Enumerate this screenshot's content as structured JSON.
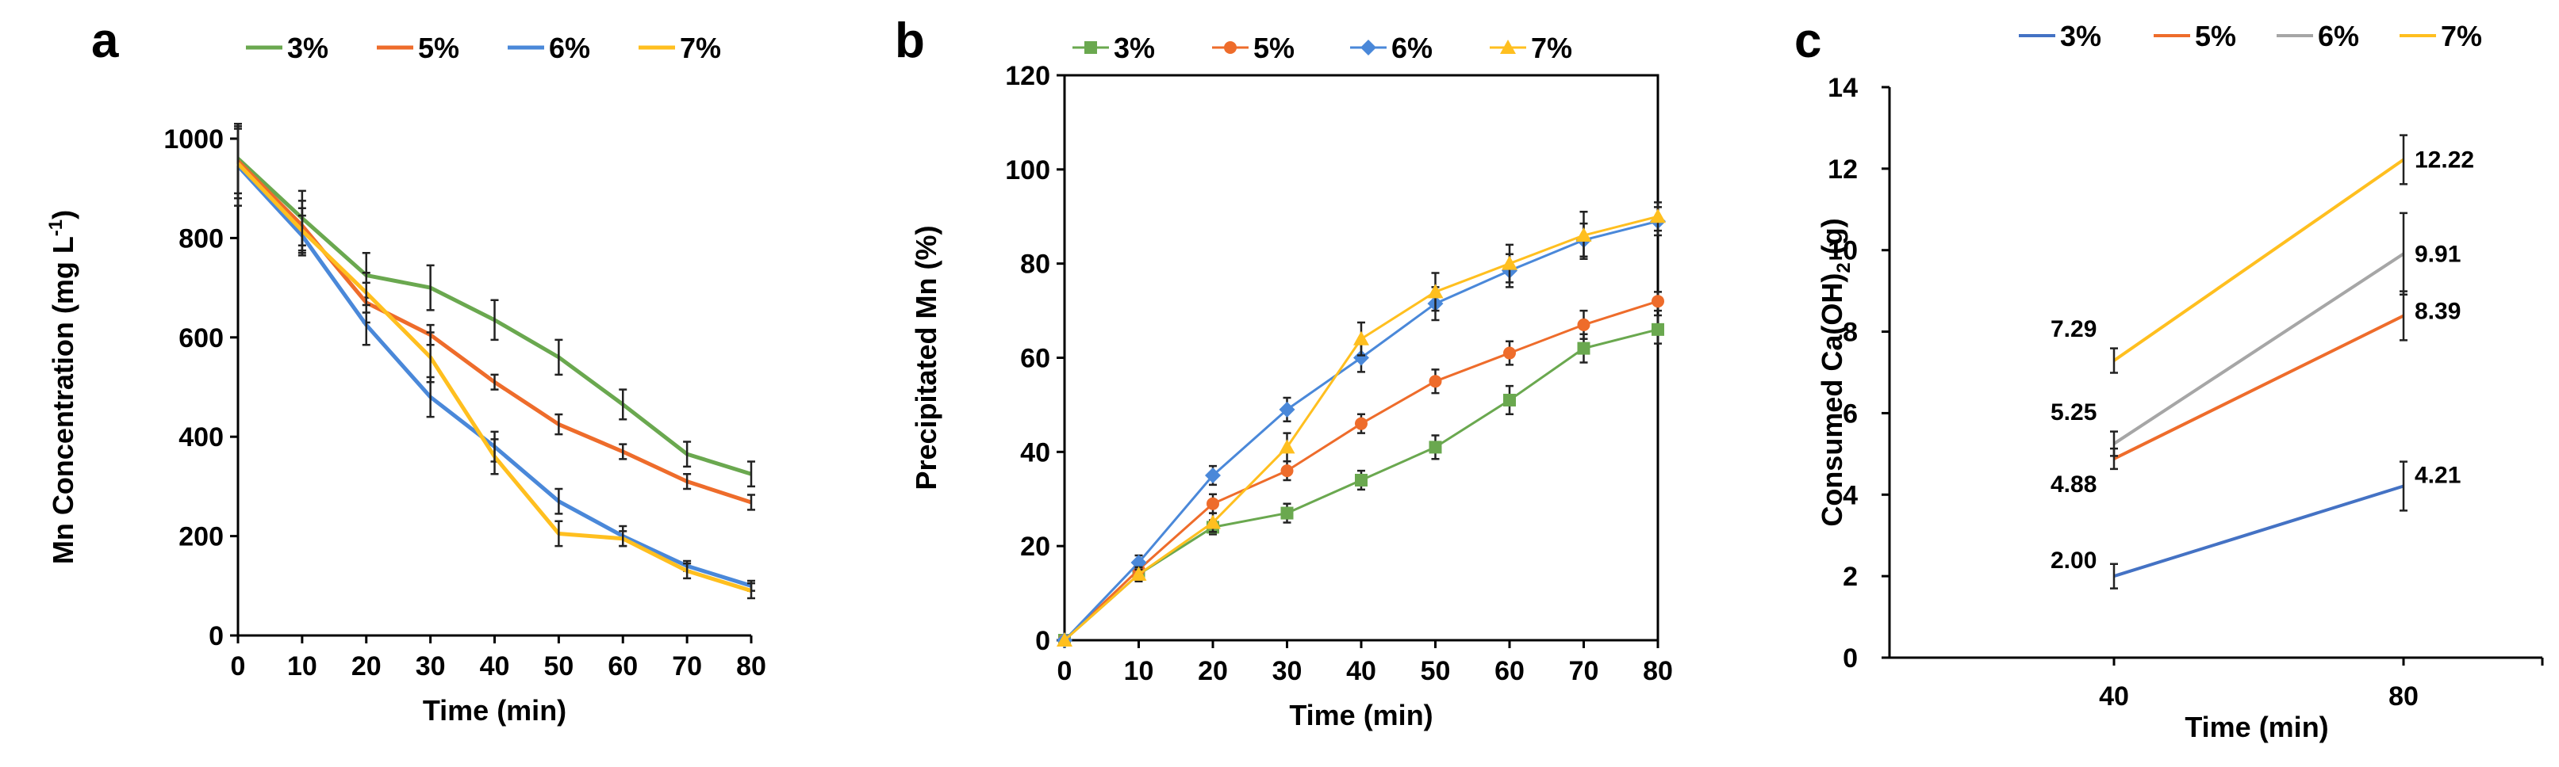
{
  "colors": {
    "c3": "#6aa84f",
    "c5": "#ee6c2b",
    "c6": "#4a88d9",
    "c7": "#ffbf1f",
    "c6_panel_c": "#a6a6a6",
    "c3_panel_c": "#4472c4"
  },
  "chart_data": [
    {
      "panel": "a",
      "type": "line",
      "title": "",
      "xlabel": "Time (min)",
      "ylabel": "Mn Concentration (mg L",
      "ylabel_sup": "-1",
      "ylabel_end": ")",
      "x": [
        0,
        10,
        20,
        30,
        40,
        50,
        60,
        70,
        80
      ],
      "xlim": [
        0,
        80
      ],
      "ylim": [
        0,
        1000
      ],
      "xticks": [
        "0",
        "10",
        "20",
        "30",
        "40",
        "50",
        "60",
        "70",
        "80"
      ],
      "yticks": [
        "0",
        "200",
        "400",
        "600",
        "800",
        "1000"
      ],
      "legend_position": "top",
      "series": [
        {
          "name": "3%",
          "values": [
            960,
            840,
            725,
            700,
            635,
            560,
            465,
            365,
            325
          ],
          "errors": [
            70,
            55,
            45,
            45,
            40,
            35,
            30,
            25,
            25
          ]
        },
        {
          "name": "5%",
          "values": [
            955,
            825,
            670,
            605,
            510,
            425,
            370,
            310,
            268
          ],
          "errors": [
            75,
            50,
            40,
            20,
            15,
            20,
            15,
            15,
            15
          ]
        },
        {
          "name": "6%",
          "values": [
            945,
            805,
            625,
            480,
            380,
            270,
            200,
            140,
            100
          ],
          "errors": [
            80,
            40,
            40,
            40,
            30,
            25,
            20,
            10,
            10
          ]
        },
        {
          "name": "7%",
          "values": [
            950,
            815,
            690,
            560,
            360,
            205,
            195,
            130,
            90
          ],
          "errors": [
            70,
            45,
            40,
            50,
            35,
            25,
            15,
            15,
            15
          ]
        }
      ]
    },
    {
      "panel": "b",
      "type": "line",
      "title": "",
      "xlabel": "Time (min)",
      "ylabel": "Precipitated Mn (%)",
      "x": [
        0,
        10,
        20,
        30,
        40,
        50,
        60,
        70,
        80
      ],
      "xlim": [
        0,
        80
      ],
      "ylim": [
        0,
        120
      ],
      "xticks": [
        "0",
        "10",
        "20",
        "30",
        "40",
        "50",
        "60",
        "70",
        "80"
      ],
      "yticks": [
        "0",
        "20",
        "40",
        "60",
        "80",
        "100",
        "120"
      ],
      "legend_position": "top",
      "series": [
        {
          "name": "3%",
          "marker": "square",
          "values": [
            0,
            14,
            24,
            27,
            34,
            41,
            51,
            62,
            66
          ],
          "errors": [
            0,
            1.5,
            1.5,
            2,
            2,
            2.5,
            3,
            3,
            3
          ]
        },
        {
          "name": "5%",
          "marker": "circle",
          "values": [
            0,
            15,
            29,
            36,
            46,
            55,
            61,
            67,
            72
          ],
          "errors": [
            0,
            1.5,
            2,
            2,
            2,
            2.5,
            2.5,
            3,
            2
          ]
        },
        {
          "name": "6%",
          "marker": "diamond",
          "values": [
            0,
            16.5,
            35,
            49,
            60,
            71.5,
            78.5,
            85,
            89
          ],
          "errors": [
            0,
            1.5,
            2,
            2.5,
            3,
            3.5,
            3.5,
            3.5,
            3
          ]
        },
        {
          "name": "7%",
          "marker": "triangle",
          "values": [
            0,
            14,
            25,
            41,
            64,
            74,
            80,
            86,
            90
          ],
          "errors": [
            0,
            1.5,
            2,
            3,
            3.5,
            4,
            4,
            5,
            3
          ]
        }
      ]
    },
    {
      "panel": "c",
      "type": "line",
      "title": "",
      "xlabel": "Time (min)",
      "ylabel": "Consumed Ca(OH)",
      "ylabel_sub": "2",
      "ylabel_end": " (g)",
      "categories": [
        "40",
        "80"
      ],
      "ylim": [
        0,
        14
      ],
      "yticks": [
        "0",
        "2",
        "4",
        "6",
        "8",
        "10",
        "12",
        "14"
      ],
      "legend_position": "top",
      "series": [
        {
          "name": "3%",
          "values": [
            2.0,
            4.21
          ],
          "labels": [
            "2.00",
            "4.21"
          ],
          "errors": [
            0.3,
            0.6
          ]
        },
        {
          "name": "5%",
          "values": [
            4.88,
            8.39
          ],
          "labels": [
            "4.88",
            "8.39"
          ],
          "errors": [
            0.25,
            0.6
          ]
        },
        {
          "name": "6%",
          "values": [
            5.25,
            9.91
          ],
          "labels": [
            "5.25",
            "9.91"
          ],
          "errors": [
            0.3,
            1.0
          ]
        },
        {
          "name": "7%",
          "values": [
            7.29,
            12.22
          ],
          "labels": [
            "7.29",
            "12.22"
          ],
          "errors": [
            0.3,
            0.6
          ]
        }
      ]
    }
  ]
}
